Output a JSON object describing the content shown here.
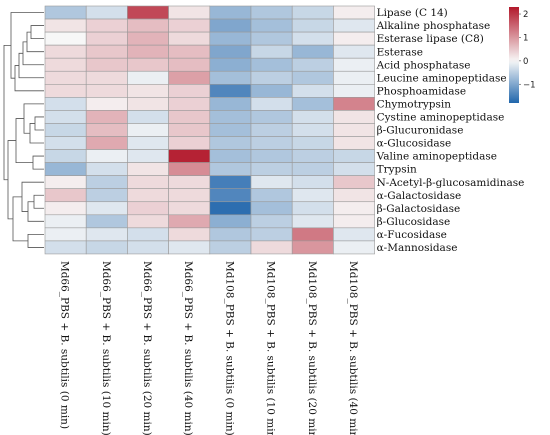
{
  "chart_data": {
    "type": "heatmap",
    "rows": [
      "Lipase (C 14)",
      "Alkaline phosphatase",
      "Esterase lipase (C8)",
      "Esterase",
      "Acid phosphatase",
      "Leucine aminopeptidase",
      "Phosphoamidase",
      "Chymotrypsin",
      "Cystine aminopeptidase",
      "β-Glucuronidase",
      "α-Glucosidase",
      "Valine aminopeptidase",
      "Trypsin",
      "N-Acetyl-β-glucosamidinase",
      "α-Galactosidase",
      "β-Galactosidase",
      "β-Glucosidase",
      "α-Fucosidase",
      "α-Mannosidase"
    ],
    "columns": [
      "Md66_PBS + B. subtilis (0 min)",
      "Md66_PBS + B. subtilis (10 min)",
      "Md66_PBS + B. subtilis (20 min)",
      "Md66_PBS + B. subtilis (40 min)",
      "Md108_PBS + B. subtilis (0 min)",
      "Md108_PBS + B. subtilis (10 min)",
      "Md108_PBS + B. subtilis (20 min)",
      "Md108_PBS + B. subtilis (40 min)"
    ],
    "values": [
      [
        -0.6,
        -0.3,
        1.8,
        0.2,
        -0.8,
        -0.6,
        -0.4,
        0.1
      ],
      [
        0.2,
        0.4,
        0.6,
        0.4,
        -1.0,
        -0.7,
        -0.4,
        -0.2
      ],
      [
        0.0,
        0.4,
        0.7,
        0.3,
        -0.8,
        -0.6,
        -0.3,
        0.1
      ],
      [
        0.3,
        0.5,
        0.7,
        0.6,
        -1.0,
        -0.4,
        -0.8,
        -0.2
      ],
      [
        0.3,
        0.5,
        0.5,
        0.6,
        -0.9,
        -0.7,
        -0.5,
        -0.1
      ],
      [
        0.3,
        0.3,
        -0.1,
        0.9,
        -0.7,
        -0.5,
        -0.6,
        -0.1
      ],
      [
        0.3,
        0.3,
        0.2,
        0.4,
        -1.4,
        -0.8,
        -0.3,
        -0.1
      ],
      [
        -0.3,
        0.1,
        0.2,
        0.4,
        -0.8,
        -0.3,
        -0.7,
        1.2
      ],
      [
        -0.3,
        0.7,
        -0.3,
        0.5,
        -0.7,
        -0.6,
        -0.3,
        0.2
      ],
      [
        -0.4,
        0.6,
        -0.1,
        0.5,
        -0.7,
        -0.5,
        -0.3,
        0.2
      ],
      [
        -0.3,
        0.8,
        -0.2,
        0.4,
        -0.6,
        -0.5,
        -0.4,
        0.2
      ],
      [
        -0.4,
        -0.1,
        -0.2,
        2.2,
        -0.7,
        -0.6,
        -0.5,
        -0.4
      ],
      [
        -0.8,
        -0.3,
        0.2,
        1.1,
        -0.6,
        -0.5,
        -0.5,
        -0.3
      ],
      [
        0.1,
        -0.5,
        0.3,
        0.3,
        -1.5,
        -0.2,
        -0.3,
        0.5
      ],
      [
        0.5,
        -0.5,
        0.3,
        0.3,
        -1.4,
        -0.6,
        -0.2,
        0.2
      ],
      [
        0.1,
        -0.2,
        0.4,
        0.3,
        -1.7,
        -0.7,
        -0.3,
        0.1
      ],
      [
        -0.1,
        -0.6,
        0.3,
        0.8,
        -0.9,
        -0.5,
        -0.2,
        0.1
      ],
      [
        -0.1,
        -0.2,
        -0.3,
        0.3,
        -0.6,
        -0.5,
        1.3,
        -0.2
      ],
      [
        -0.3,
        -0.4,
        -0.3,
        -0.2,
        -0.5,
        0.3,
        1.0,
        -0.1
      ]
    ],
    "colorbar": {
      "ticks": [
        2,
        1,
        0,
        -1
      ],
      "range": [
        -1.8,
        2.3
      ],
      "colors": {
        "low": "#2166ac",
        "mid": "#f7f7f7",
        "high": "#b2182b"
      }
    },
    "row_dendrogram": true,
    "grid_color": "#9a9a9a"
  }
}
